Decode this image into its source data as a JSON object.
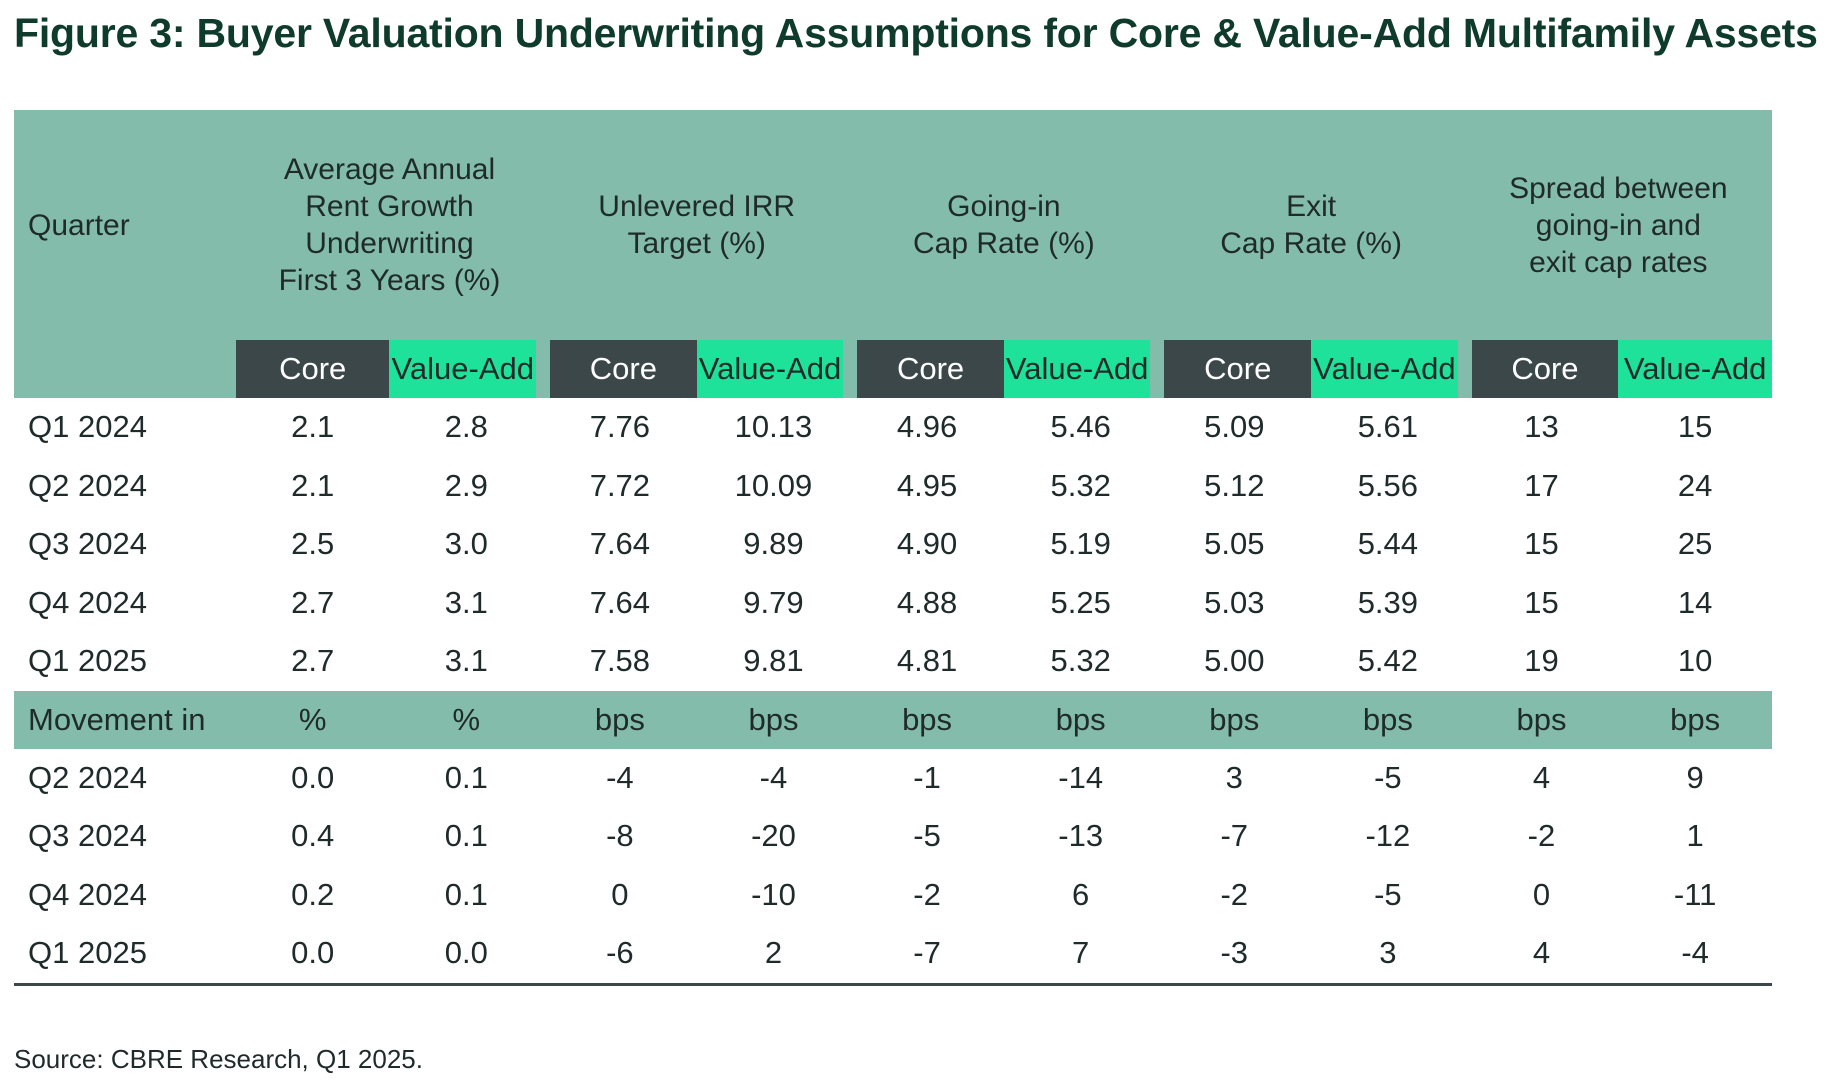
{
  "title": "Figure 3: Buyer Valuation Underwriting Assumptions for Core & Value-Add Multifamily Assets",
  "source": "Source: CBRE Research, Q1 2025.",
  "colors": {
    "header_bg": "#84bcab",
    "core_bg": "#3b4748",
    "value_add_bg": "#1fe29a",
    "title": "#0e3b2c"
  },
  "chart_data": {
    "type": "table",
    "title": "Figure 3: Buyer Valuation Underwriting Assumptions for Core & Value-Add Multifamily Assets",
    "quarter_header": "Quarter",
    "column_groups": [
      {
        "label_lines": [
          "Average Annual",
          "Rent Growth",
          "Underwriting",
          "First 3 Years (%)"
        ]
      },
      {
        "label_lines": [
          "Unlevered IRR",
          "Target (%)"
        ]
      },
      {
        "label_lines": [
          "Going-in",
          "Cap Rate (%)"
        ]
      },
      {
        "label_lines": [
          "Exit",
          "Cap Rate (%)"
        ]
      },
      {
        "label_lines": [
          "Spread between",
          "going-in and",
          "exit cap rates"
        ]
      }
    ],
    "subheaders": [
      "Core",
      "Value-Add"
    ],
    "rows": [
      {
        "quarter": "Q1 2024",
        "values": [
          "2.1",
          "2.8",
          "7.76",
          "10.13",
          "4.96",
          "5.46",
          "5.09",
          "5.61",
          "13",
          "15"
        ]
      },
      {
        "quarter": "Q2 2024",
        "values": [
          "2.1",
          "2.9",
          "7.72",
          "10.09",
          "4.95",
          "5.32",
          "5.12",
          "5.56",
          "17",
          "24"
        ]
      },
      {
        "quarter": "Q3 2024",
        "values": [
          "2.5",
          "3.0",
          "7.64",
          "9.89",
          "4.90",
          "5.19",
          "5.05",
          "5.44",
          "15",
          "25"
        ]
      },
      {
        "quarter": "Q4 2024",
        "values": [
          "2.7",
          "3.1",
          "7.64",
          "9.79",
          "4.88",
          "5.25",
          "5.03",
          "5.39",
          "15",
          "14"
        ]
      },
      {
        "quarter": "Q1 2025",
        "values": [
          "2.7",
          "3.1",
          "7.58",
          "9.81",
          "4.81",
          "5.32",
          "5.00",
          "5.42",
          "19",
          "10"
        ]
      }
    ],
    "movement_header": {
      "label": "Movement in",
      "units": [
        "%",
        "%",
        "bps",
        "bps",
        "bps",
        "bps",
        "bps",
        "bps",
        "bps",
        "bps"
      ]
    },
    "movement_rows": [
      {
        "quarter": "Q2 2024",
        "values": [
          "0.0",
          "0.1",
          "-4",
          "-4",
          "-1",
          "-14",
          "3",
          "-5",
          "4",
          "9"
        ]
      },
      {
        "quarter": "Q3 2024",
        "values": [
          "0.4",
          "0.1",
          "-8",
          "-20",
          "-5",
          "-13",
          "-7",
          "-12",
          "-2",
          "1"
        ]
      },
      {
        "quarter": "Q4 2024",
        "values": [
          "0.2",
          "0.1",
          "0",
          "-10",
          "-2",
          "6",
          "-2",
          "-5",
          "0",
          "-11"
        ]
      },
      {
        "quarter": "Q1 2025",
        "values": [
          "0.0",
          "0.0",
          "-6",
          "2",
          "-7",
          "7",
          "-3",
          "3",
          "4",
          "-4"
        ]
      }
    ]
  }
}
